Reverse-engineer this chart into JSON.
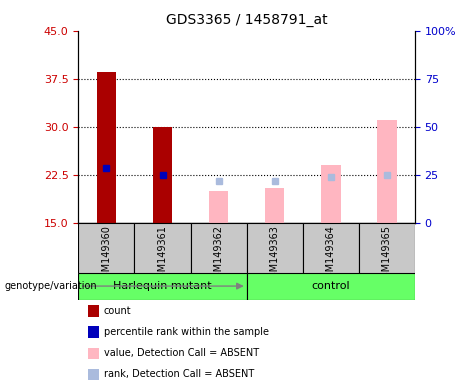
{
  "title": "GDS3365 / 1458791_at",
  "samples": [
    "GSM149360",
    "GSM149361",
    "GSM149362",
    "GSM149363",
    "GSM149364",
    "GSM149365"
  ],
  "ylim_left": [
    15,
    45
  ],
  "ylim_right": [
    0,
    100
  ],
  "yticks_left": [
    15,
    22.5,
    30,
    37.5,
    45
  ],
  "yticks_right": [
    0,
    25,
    50,
    75,
    100
  ],
  "yticklabels_right": [
    "0",
    "25",
    "50",
    "75",
    "100%"
  ],
  "count_values": [
    38.5,
    30.0,
    null,
    null,
    null,
    null
  ],
  "count_color": "#AA0000",
  "percentile_values": [
    23.5,
    22.5,
    null,
    null,
    null,
    null
  ],
  "percentile_color": "#0000BB",
  "absent_value_values": [
    null,
    null,
    20.0,
    20.5,
    24.0,
    31.0
  ],
  "absent_value_color": "#FFB6C1",
  "absent_rank_values": [
    null,
    null,
    21.5,
    21.5,
    22.2,
    22.5
  ],
  "absent_rank_color": "#AABBDD",
  "bar_width": 0.35,
  "grid_linestyle": ":",
  "left_tick_color": "#CC0000",
  "right_tick_color": "#0000CC",
  "bg_color": "#FFFFFF",
  "sample_bg_color": "#C8C8C8",
  "group_color": "#66FF66",
  "legend_items": [
    {
      "label": "count",
      "color": "#AA0000"
    },
    {
      "label": "percentile rank within the sample",
      "color": "#0000BB"
    },
    {
      "label": "value, Detection Call = ABSENT",
      "color": "#FFB6C1"
    },
    {
      "label": "rank, Detection Call = ABSENT",
      "color": "#AABBDD"
    }
  ],
  "harlequin_samples": [
    0,
    1,
    2
  ],
  "control_samples": [
    3,
    4,
    5
  ]
}
